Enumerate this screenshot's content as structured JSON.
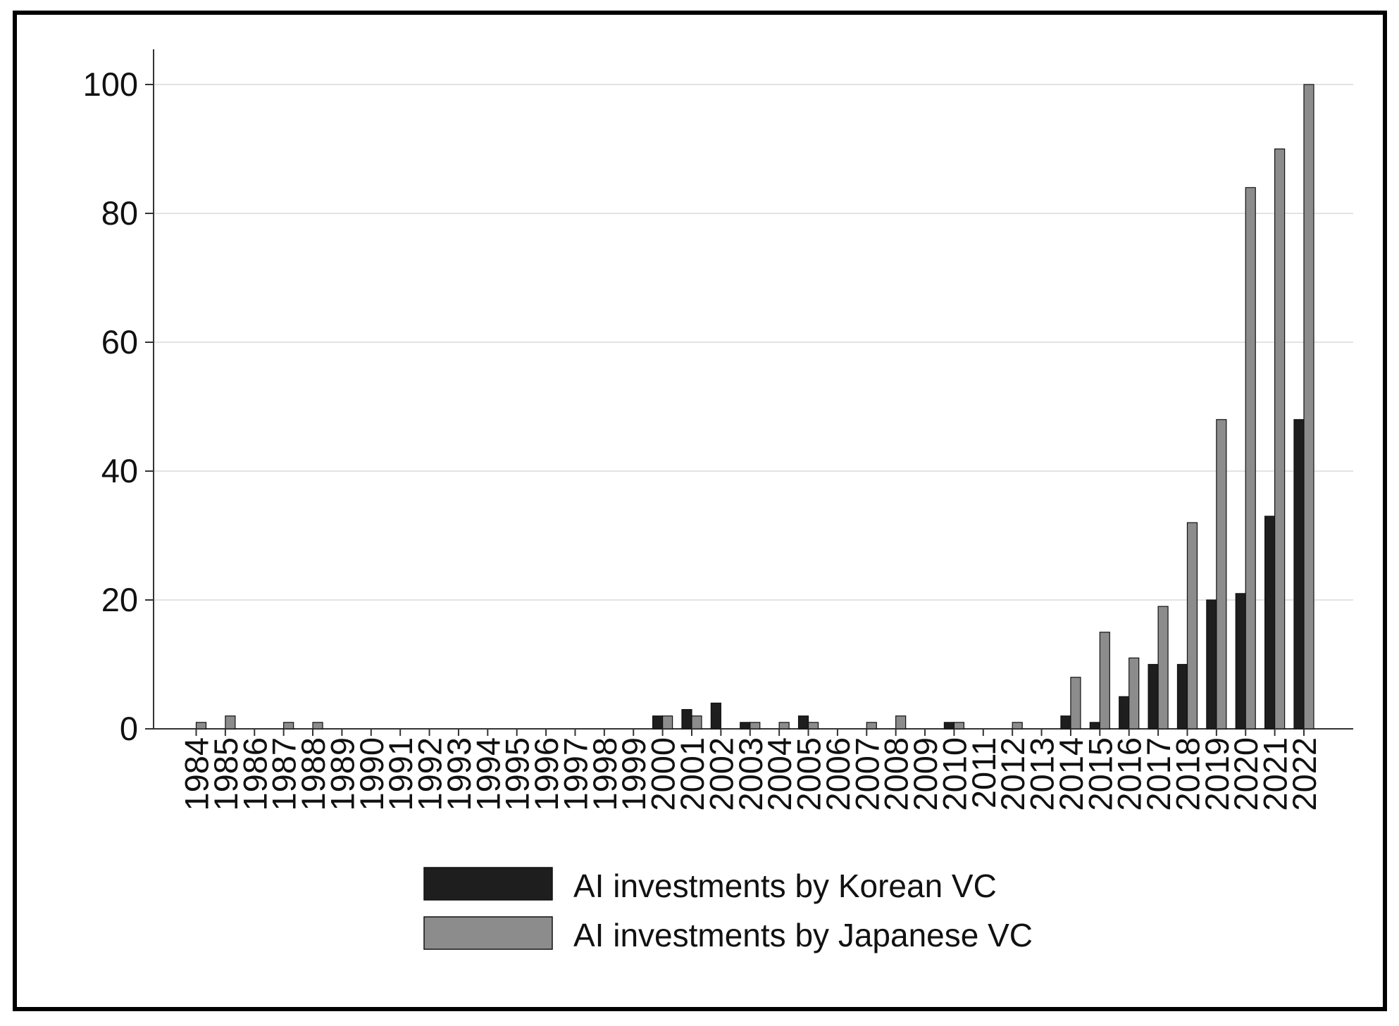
{
  "chart_data": {
    "type": "bar",
    "title": "",
    "xlabel": "",
    "ylabel": "",
    "ylim": [
      0,
      100
    ],
    "yticks": [
      0,
      20,
      40,
      60,
      80,
      100
    ],
    "grid": true,
    "legend_position": "bottom",
    "categories": [
      "1984",
      "1985",
      "1986",
      "1987",
      "1988",
      "1989",
      "1990",
      "1991",
      "1992",
      "1993",
      "1994",
      "1995",
      "1996",
      "1997",
      "1998",
      "1999",
      "2000",
      "2001",
      "2002",
      "2003",
      "2004",
      "2005",
      "2006",
      "2007",
      "2008",
      "2009",
      "2010",
      "2011",
      "2012",
      "2013",
      "2014",
      "2015",
      "2016",
      "2017",
      "2018",
      "2019",
      "2020",
      "2021",
      "2022"
    ],
    "series": [
      {
        "name": "AI investments by Korean VC",
        "color": "#1e1e1e",
        "values": [
          0,
          0,
          0,
          0,
          0,
          0,
          0,
          0,
          0,
          0,
          0,
          0,
          0,
          0,
          0,
          0,
          2,
          3,
          4,
          1,
          0,
          2,
          0,
          0,
          0,
          0,
          1,
          0,
          0,
          0,
          2,
          1,
          5,
          10,
          10,
          20,
          21,
          33,
          48
        ]
      },
      {
        "name": "AI investments by Japanese VC",
        "color": "#8c8c8c",
        "values": [
          1,
          2,
          0,
          1,
          1,
          0,
          0,
          0,
          0,
          0,
          0,
          0,
          0,
          0,
          0,
          0,
          2,
          2,
          0,
          1,
          1,
          1,
          0,
          1,
          2,
          0,
          1,
          0,
          1,
          0,
          8,
          15,
          11,
          19,
          32,
          48,
          84,
          90,
          100
        ]
      }
    ]
  }
}
